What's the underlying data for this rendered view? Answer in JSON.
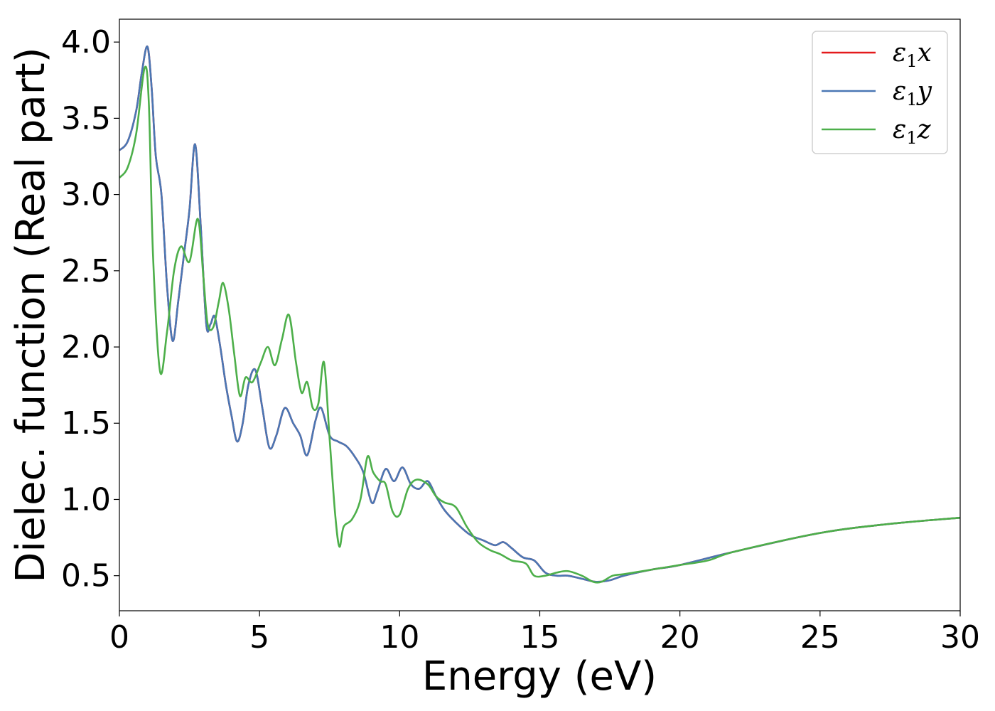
{
  "chart_data": {
    "type": "line",
    "xlabel": "Energy (eV)",
    "ylabel": "Dielec. function (Real part)",
    "xlim": [
      0,
      30
    ],
    "ylim": [
      0.27,
      4.15
    ],
    "xticks": [
      0,
      5,
      10,
      15,
      20,
      25,
      30
    ],
    "xtick_labels": [
      "0",
      "5",
      "10",
      "15",
      "20",
      "25",
      "30"
    ],
    "yticks": [
      0.5,
      1.0,
      1.5,
      2.0,
      2.5,
      3.0,
      3.5,
      4.0
    ],
    "ytick_labels": [
      "0.5",
      "1.0",
      "1.5",
      "2.0",
      "2.5",
      "3.0",
      "3.5",
      "4.0"
    ],
    "grid": false,
    "legend_position": "top-right",
    "series": [
      {
        "name": "ε1x",
        "legend_main": "ε",
        "legend_sub": "1",
        "legend_tail": "x",
        "color": "#e41a1c",
        "x": [
          0,
          0.3,
          0.6,
          0.8,
          1.0,
          1.15,
          1.3,
          1.5,
          1.7,
          1.9,
          2.1,
          2.3,
          2.5,
          2.7,
          2.9,
          3.1,
          3.25,
          3.4,
          3.6,
          3.8,
          4.0,
          4.2,
          4.4,
          4.6,
          4.85,
          5.1,
          5.35,
          5.6,
          5.9,
          6.2,
          6.45,
          6.7,
          7.0,
          7.2,
          7.5,
          7.8,
          8.1,
          8.4,
          8.7,
          9.0,
          9.2,
          9.5,
          9.8,
          10.1,
          10.4,
          10.7,
          11.0,
          11.3,
          11.6,
          12.0,
          12.5,
          13.0,
          13.4,
          13.7,
          14.0,
          14.4,
          14.8,
          15.2,
          15.6,
          16.0,
          16.5,
          17.0,
          17.5,
          18.0,
          19.0,
          20.0,
          22.0,
          25.0,
          27.5,
          30.0
        ],
        "y": [
          3.29,
          3.35,
          3.55,
          3.8,
          3.97,
          3.7,
          3.25,
          3.0,
          2.4,
          2.04,
          2.3,
          2.6,
          2.9,
          3.33,
          2.8,
          2.15,
          2.15,
          2.2,
          2.0,
          1.75,
          1.55,
          1.38,
          1.5,
          1.75,
          1.85,
          1.6,
          1.34,
          1.42,
          1.6,
          1.5,
          1.42,
          1.29,
          1.52,
          1.6,
          1.42,
          1.38,
          1.35,
          1.28,
          1.18,
          0.98,
          1.05,
          1.2,
          1.12,
          1.21,
          1.1,
          1.07,
          1.12,
          1.02,
          0.93,
          0.85,
          0.77,
          0.73,
          0.7,
          0.72,
          0.68,
          0.62,
          0.6,
          0.52,
          0.5,
          0.5,
          0.48,
          0.46,
          0.47,
          0.5,
          0.54,
          0.57,
          0.66,
          0.78,
          0.84,
          0.88
        ]
      },
      {
        "name": "ε1y",
        "legend_main": "ε",
        "legend_sub": "1",
        "legend_tail": "y",
        "color": "#4a77b4",
        "x": [
          0,
          0.3,
          0.6,
          0.8,
          1.0,
          1.15,
          1.3,
          1.5,
          1.7,
          1.9,
          2.1,
          2.3,
          2.5,
          2.7,
          2.9,
          3.1,
          3.25,
          3.4,
          3.6,
          3.8,
          4.0,
          4.2,
          4.4,
          4.6,
          4.85,
          5.1,
          5.35,
          5.6,
          5.9,
          6.2,
          6.45,
          6.7,
          7.0,
          7.2,
          7.5,
          7.8,
          8.1,
          8.4,
          8.7,
          9.0,
          9.2,
          9.5,
          9.8,
          10.1,
          10.4,
          10.7,
          11.0,
          11.3,
          11.6,
          12.0,
          12.5,
          13.0,
          13.4,
          13.7,
          14.0,
          14.4,
          14.8,
          15.2,
          15.6,
          16.0,
          16.5,
          17.0,
          17.5,
          18.0,
          19.0,
          20.0,
          22.0,
          25.0,
          27.5,
          30.0
        ],
        "y": [
          3.29,
          3.35,
          3.55,
          3.8,
          3.97,
          3.7,
          3.25,
          3.0,
          2.4,
          2.04,
          2.3,
          2.6,
          2.9,
          3.33,
          2.8,
          2.15,
          2.15,
          2.2,
          2.0,
          1.75,
          1.55,
          1.38,
          1.5,
          1.75,
          1.85,
          1.6,
          1.34,
          1.42,
          1.6,
          1.5,
          1.42,
          1.29,
          1.52,
          1.6,
          1.42,
          1.38,
          1.35,
          1.28,
          1.18,
          0.98,
          1.05,
          1.2,
          1.12,
          1.21,
          1.1,
          1.07,
          1.12,
          1.02,
          0.93,
          0.85,
          0.77,
          0.73,
          0.7,
          0.72,
          0.68,
          0.62,
          0.6,
          0.52,
          0.5,
          0.5,
          0.48,
          0.46,
          0.47,
          0.5,
          0.54,
          0.57,
          0.66,
          0.78,
          0.84,
          0.88
        ]
      },
      {
        "name": "ε1z",
        "legend_main": "ε",
        "legend_sub": "1",
        "legend_tail": "z",
        "color": "#4daf4a",
        "x": [
          0,
          0.3,
          0.6,
          0.9,
          1.05,
          1.2,
          1.45,
          1.7,
          1.95,
          2.2,
          2.5,
          2.8,
          3.0,
          3.15,
          3.35,
          3.55,
          3.7,
          3.9,
          4.1,
          4.3,
          4.5,
          4.75,
          5.05,
          5.3,
          5.55,
          5.8,
          6.05,
          6.3,
          6.5,
          6.7,
          6.9,
          7.1,
          7.3,
          7.5,
          7.7,
          7.85,
          8.0,
          8.3,
          8.6,
          8.85,
          9.05,
          9.3,
          9.5,
          9.75,
          10.0,
          10.3,
          10.6,
          11.0,
          11.3,
          11.6,
          12.0,
          12.4,
          12.8,
          13.2,
          13.6,
          14.0,
          14.5,
          14.8,
          15.2,
          15.6,
          16.0,
          16.5,
          16.9,
          17.2,
          17.6,
          18.0,
          19.0,
          20.0,
          21.0,
          22.0,
          25.0,
          27.5,
          30.0
        ],
        "y": [
          3.11,
          3.18,
          3.4,
          3.83,
          3.6,
          2.6,
          1.84,
          2.1,
          2.5,
          2.66,
          2.56,
          2.84,
          2.45,
          2.15,
          2.13,
          2.3,
          2.42,
          2.25,
          1.95,
          1.68,
          1.8,
          1.77,
          1.9,
          2.0,
          1.88,
          2.05,
          2.21,
          1.9,
          1.7,
          1.77,
          1.6,
          1.63,
          1.9,
          1.4,
          0.9,
          0.69,
          0.82,
          0.87,
          1.0,
          1.28,
          1.18,
          1.12,
          1.1,
          0.92,
          0.9,
          1.07,
          1.13,
          1.1,
          1.02,
          0.98,
          0.95,
          0.82,
          0.72,
          0.67,
          0.64,
          0.6,
          0.58,
          0.5,
          0.5,
          0.52,
          0.53,
          0.5,
          0.46,
          0.46,
          0.5,
          0.51,
          0.54,
          0.57,
          0.6,
          0.66,
          0.78,
          0.84,
          0.88
        ]
      }
    ]
  }
}
